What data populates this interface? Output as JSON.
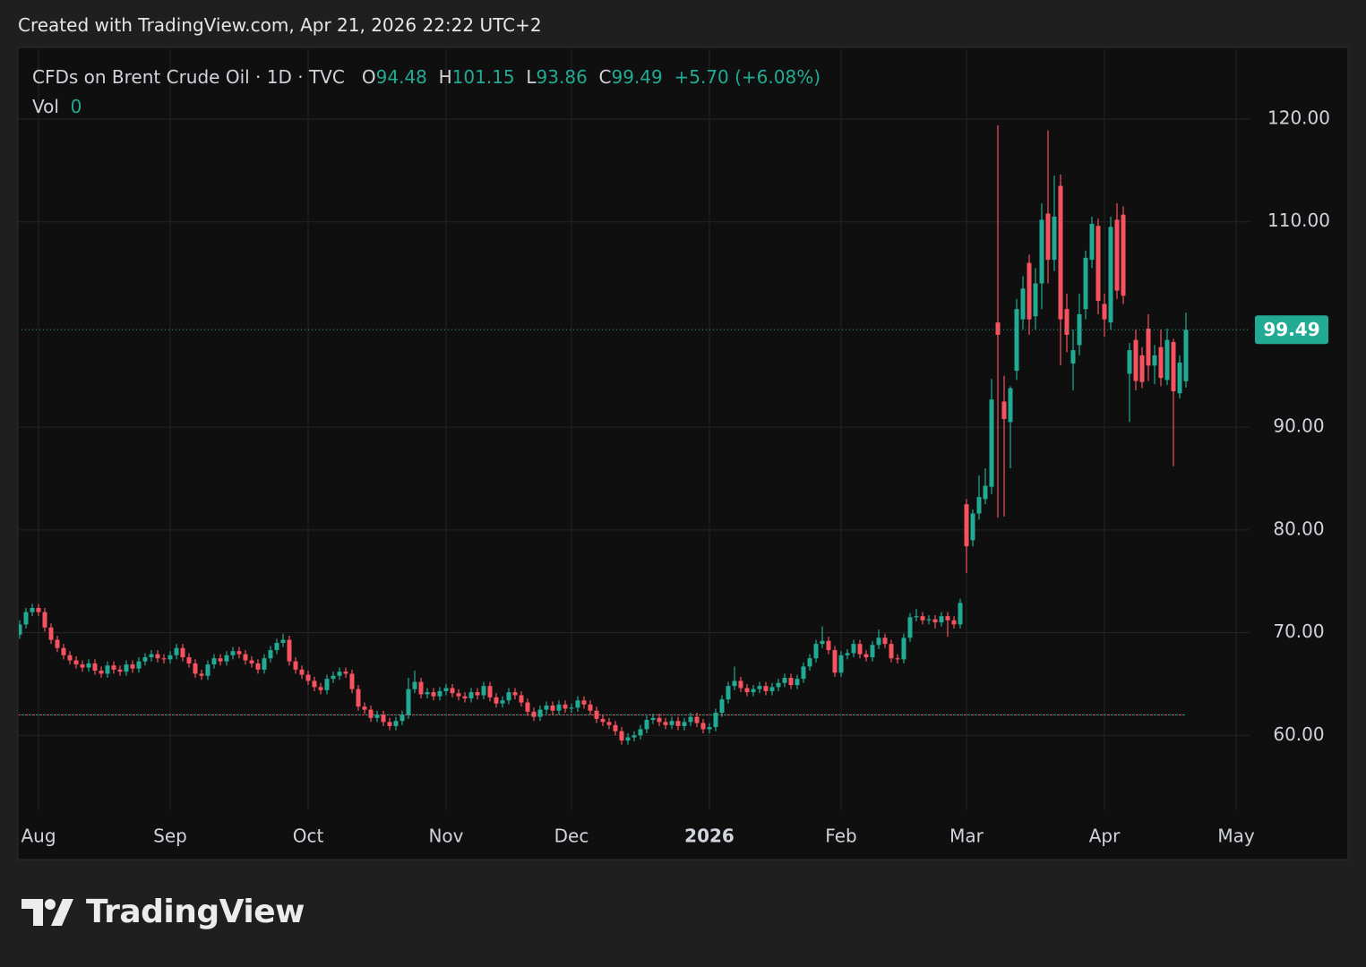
{
  "header": {
    "created": "Created with TradingView.com, Apr 21, 2026 22:22 UTC+2"
  },
  "logo": {
    "text": "TradingView"
  },
  "chart_data": {
    "type": "candlestick",
    "title": "CFDs on Brent Crude Oil · 1D · TVC",
    "ohlc_labels": {
      "open": "O",
      "high": "H",
      "low": "L",
      "close": "C"
    },
    "change": "+5.70 (+6.08%)",
    "volume_label": "Vol",
    "volume": 0,
    "up_color": "#22ab94",
    "down_color": "#f7525f",
    "ylim": [
      52.7,
      126.8
    ],
    "yticks": [
      {
        "value": 60,
        "label": "60.00"
      },
      {
        "value": 70,
        "label": "70.00"
      },
      {
        "value": 80,
        "label": "80.00"
      },
      {
        "value": 90,
        "label": "90.00"
      },
      {
        "value": 110,
        "label": "110.00"
      },
      {
        "value": 120,
        "label": "120.00"
      }
    ],
    "grid": true,
    "reference_line": 62.0,
    "categories": [
      null,
      null,
      null,
      "Aug",
      null,
      null,
      null,
      null,
      null,
      null,
      null,
      null,
      null,
      null,
      null,
      null,
      null,
      null,
      null,
      null,
      null,
      null,
      null,
      null,
      "Sep",
      null,
      null,
      null,
      null,
      null,
      null,
      null,
      null,
      null,
      null,
      null,
      null,
      null,
      null,
      null,
      null,
      null,
      null,
      null,
      null,
      null,
      "Oct",
      null,
      null,
      null,
      null,
      null,
      null,
      null,
      null,
      null,
      null,
      null,
      null,
      null,
      null,
      null,
      null,
      null,
      null,
      null,
      null,
      null,
      "Nov",
      null,
      null,
      null,
      null,
      null,
      null,
      null,
      null,
      null,
      null,
      null,
      null,
      null,
      null,
      null,
      null,
      null,
      null,
      null,
      "Dec",
      null,
      null,
      null,
      null,
      null,
      null,
      null,
      null,
      null,
      null,
      null,
      null,
      null,
      null,
      null,
      null,
      null,
      null,
      null,
      null,
      null,
      "2026",
      null,
      null,
      null,
      null,
      null,
      null,
      null,
      null,
      null,
      null,
      null,
      null,
      null,
      null,
      null,
      null,
      null,
      null,
      null,
      null,
      "Feb",
      null,
      null,
      null,
      null,
      null,
      null,
      null,
      null,
      null,
      null,
      null,
      null,
      null,
      null,
      null,
      null,
      null,
      null,
      null,
      "Mar",
      null,
      null,
      null,
      null,
      null,
      null,
      null,
      null,
      null,
      null,
      null,
      null,
      null,
      null,
      null,
      null,
      null,
      null,
      null,
      null,
      null,
      "Apr",
      null,
      null,
      null,
      null,
      null,
      null,
      null,
      null,
      null,
      null,
      null,
      null,
      null,
      null,
      null,
      null,
      null,
      null,
      null,
      null,
      "May"
    ],
    "open": [
      69.8,
      70.8,
      72.0,
      72.4,
      72.0,
      70.5,
      69.3,
      68.5,
      67.8,
      67.3,
      66.9,
      66.6,
      67.0,
      66.3,
      66.0,
      66.8,
      66.4,
      66.2,
      66.9,
      66.5,
      67.2,
      67.6,
      67.9,
      67.5,
      67.4,
      67.8,
      68.5,
      67.6,
      67.0,
      66.0,
      65.8,
      66.9,
      67.5,
      67.2,
      67.8,
      68.2,
      67.9,
      67.3,
      67.0,
      66.4,
      67.5,
      68.3,
      69.0,
      69.3,
      67.2,
      66.4,
      65.9,
      65.3,
      64.7,
      64.4,
      65.5,
      65.8,
      66.2,
      66.0,
      64.5,
      62.8,
      62.5,
      61.7,
      62.0,
      61.3,
      60.9,
      61.4,
      62.0,
      64.5,
      65.2,
      64.0,
      64.2,
      63.8,
      64.3,
      64.6,
      64.1,
      63.8,
      63.6,
      64.2,
      63.9,
      64.8,
      63.7,
      63.1,
      63.4,
      64.2,
      63.9,
      63.2,
      62.3,
      61.8,
      62.5,
      62.9,
      62.4,
      63.0,
      62.6,
      62.7,
      63.4,
      63.0,
      62.4,
      61.6,
      61.3,
      61.0,
      60.4,
      59.5,
      59.8,
      60.0,
      60.6,
      61.5,
      61.7,
      61.3,
      61.0,
      61.4,
      60.9,
      61.3,
      61.8,
      61.2,
      60.6,
      60.8,
      62.2,
      63.5,
      64.8,
      65.3,
      64.6,
      64.2,
      64.5,
      64.8,
      64.3,
      64.7,
      65.1,
      65.6,
      64.9,
      65.5,
      66.7,
      67.5,
      68.9,
      69.2,
      68.3,
      66.1,
      67.8,
      68.0,
      68.9,
      67.9,
      67.6,
      68.8,
      69.5,
      68.9,
      67.5,
      67.4,
      69.5,
      71.5,
      71.6,
      71.2,
      71.3,
      71.0,
      71.6,
      71.2,
      70.8,
      82.5,
      79.0,
      81.6,
      83.0,
      84.2,
      100.2,
      92.5,
      90.5,
      95.5,
      100.5,
      106.0,
      100.8,
      104.0,
      110.8,
      106.3,
      113.5,
      101.5,
      96.2,
      98.0,
      101.5,
      106.3,
      109.6,
      102.0,
      100.2,
      110.2,
      110.7,
      95.2,
      98.5,
      97.0,
      99.6,
      96.0,
      97.8,
      94.6,
      98.3,
      93.3,
      94.48,
      null,
      null,
      null,
      null,
      null,
      null,
      null,
      null
    ],
    "high": [
      71.2,
      72.4,
      72.8,
      72.8,
      72.4,
      70.9,
      69.7,
      68.9,
      68.2,
      67.7,
      67.3,
      67.4,
      67.4,
      66.7,
      67.2,
      67.2,
      66.8,
      67.3,
      67.3,
      67.6,
      68.0,
      68.3,
      68.3,
      67.9,
      68.2,
      68.9,
      68.9,
      68.0,
      67.4,
      66.4,
      67.3,
      67.9,
      67.9,
      68.2,
      68.6,
      68.6,
      68.3,
      67.7,
      67.4,
      67.9,
      68.7,
      69.4,
      69.9,
      69.7,
      67.6,
      66.8,
      66.3,
      65.7,
      65.1,
      65.9,
      66.2,
      66.6,
      66.6,
      66.4,
      64.9,
      63.2,
      62.9,
      62.4,
      62.4,
      61.7,
      61.8,
      62.4,
      65.6,
      66.3,
      65.6,
      64.6,
      64.6,
      64.7,
      65.0,
      65.0,
      64.5,
      64.2,
      64.6,
      64.6,
      65.2,
      65.2,
      64.1,
      63.8,
      64.6,
      64.6,
      64.3,
      63.6,
      62.7,
      62.9,
      63.3,
      63.3,
      63.4,
      63.4,
      63.1,
      63.8,
      63.8,
      63.4,
      62.8,
      62.0,
      61.7,
      61.4,
      60.8,
      60.2,
      60.4,
      61.0,
      61.9,
      62.1,
      62.1,
      61.7,
      61.8,
      61.8,
      61.7,
      62.2,
      62.2,
      61.6,
      61.2,
      62.6,
      63.9,
      65.2,
      66.7,
      65.7,
      65.0,
      64.9,
      65.2,
      65.2,
      65.1,
      65.5,
      66.0,
      66.0,
      65.9,
      67.1,
      67.9,
      69.3,
      70.6,
      69.6,
      68.7,
      68.2,
      68.4,
      69.3,
      69.3,
      68.3,
      69.2,
      70.3,
      69.9,
      69.3,
      67.9,
      69.9,
      71.9,
      72.3,
      72.0,
      71.7,
      71.7,
      72.0,
      72.0,
      71.6,
      73.3,
      83.0,
      82.0,
      85.3,
      86.0,
      94.7,
      119.4,
      95.0,
      94.0,
      102.5,
      104.7,
      106.8,
      105.5,
      111.8,
      118.9,
      114.5,
      114.6,
      103.0,
      99.5,
      103.0,
      107.2,
      110.5,
      110.3,
      103.0,
      110.5,
      111.8,
      111.5,
      98.2,
      99.5,
      97.8,
      101.0,
      98.0,
      99.5,
      99.6,
      98.6,
      97.0,
      101.15,
      null,
      null,
      null,
      null,
      null,
      null,
      null,
      null
    ],
    "low": [
      69.4,
      70.4,
      71.6,
      71.6,
      70.1,
      68.9,
      68.1,
      67.4,
      66.9,
      66.5,
      66.2,
      66.2,
      65.9,
      65.6,
      65.6,
      66.0,
      65.8,
      65.8,
      66.1,
      66.1,
      66.8,
      67.2,
      67.1,
      67.0,
      67.0,
      67.4,
      67.2,
      66.6,
      65.6,
      65.4,
      65.4,
      66.5,
      66.8,
      66.8,
      67.4,
      67.5,
      66.9,
      66.6,
      66.0,
      66.0,
      67.1,
      67.9,
      68.6,
      66.8,
      66.0,
      65.5,
      64.9,
      64.3,
      64.0,
      64.0,
      65.1,
      65.4,
      65.6,
      64.1,
      62.4,
      62.1,
      61.3,
      61.3,
      60.9,
      60.5,
      60.5,
      61.0,
      61.6,
      64.1,
      63.6,
      63.6,
      63.4,
      63.4,
      63.9,
      63.7,
      63.4,
      63.2,
      63.2,
      63.5,
      63.5,
      63.3,
      62.7,
      62.7,
      63.0,
      63.5,
      62.8,
      61.9,
      61.4,
      61.4,
      62.1,
      62.0,
      62.0,
      62.2,
      62.2,
      62.3,
      62.6,
      62.0,
      61.2,
      60.9,
      60.6,
      60.0,
      59.1,
      59.1,
      59.4,
      59.6,
      60.2,
      61.1,
      60.9,
      60.6,
      60.6,
      60.5,
      60.5,
      60.9,
      60.8,
      60.2,
      60.2,
      60.4,
      61.8,
      63.1,
      64.4,
      64.2,
      63.8,
      63.8,
      64.1,
      63.9,
      63.9,
      64.3,
      64.7,
      64.5,
      64.5,
      65.1,
      66.3,
      67.1,
      68.5,
      67.9,
      65.7,
      65.7,
      67.4,
      67.6,
      67.5,
      67.2,
      67.2,
      68.4,
      68.5,
      67.1,
      67.0,
      67.0,
      69.1,
      71.1,
      70.8,
      70.8,
      70.4,
      70.6,
      69.6,
      70.4,
      70.4,
      75.8,
      78.4,
      81.0,
      82.5,
      83.5,
      81.2,
      81.3,
      86.0,
      94.6,
      99.5,
      99.0,
      99.5,
      101.5,
      104.0,
      105.2,
      96.0,
      97.3,
      93.6,
      97.0,
      100.5,
      105.5,
      101.0,
      98.8,
      99.5,
      102.5,
      102.0,
      90.5,
      93.6,
      93.8,
      94.5,
      94.2,
      94.0,
      94.1,
      86.2,
      92.8,
      93.86,
      null,
      null,
      null,
      null,
      null,
      null,
      null,
      null
    ],
    "close": [
      70.8,
      72.0,
      72.4,
      72.0,
      70.5,
      69.3,
      68.5,
      67.8,
      67.3,
      66.9,
      66.6,
      67.0,
      66.3,
      66.0,
      66.8,
      66.4,
      66.2,
      66.9,
      66.5,
      67.2,
      67.6,
      67.9,
      67.5,
      67.4,
      67.8,
      68.5,
      67.6,
      67.0,
      66.0,
      65.8,
      66.9,
      67.5,
      67.2,
      67.8,
      68.2,
      67.9,
      67.3,
      67.0,
      66.4,
      67.5,
      68.3,
      69.0,
      69.3,
      67.2,
      66.4,
      65.9,
      65.3,
      64.7,
      64.4,
      65.5,
      65.8,
      66.2,
      66.0,
      64.5,
      62.8,
      62.5,
      61.7,
      62.0,
      61.3,
      60.9,
      61.4,
      62.0,
      64.5,
      65.2,
      64.0,
      64.2,
      63.8,
      64.3,
      64.6,
      64.1,
      63.8,
      63.6,
      64.2,
      63.9,
      64.8,
      63.7,
      63.1,
      63.4,
      64.2,
      63.9,
      63.2,
      62.3,
      61.8,
      62.5,
      62.9,
      62.4,
      63.0,
      62.6,
      62.7,
      63.4,
      63.0,
      62.4,
      61.6,
      61.3,
      61.0,
      60.4,
      59.5,
      59.8,
      60.0,
      60.6,
      61.5,
      61.7,
      61.3,
      61.0,
      61.4,
      60.9,
      61.3,
      61.8,
      61.2,
      60.6,
      60.8,
      62.2,
      63.5,
      64.8,
      65.3,
      64.6,
      64.2,
      64.5,
      64.8,
      64.3,
      64.7,
      65.1,
      65.6,
      64.9,
      65.5,
      66.7,
      67.5,
      68.9,
      69.2,
      68.3,
      66.1,
      67.8,
      68.0,
      68.9,
      67.9,
      67.6,
      68.8,
      69.5,
      68.9,
      67.5,
      67.4,
      69.5,
      71.5,
      71.6,
      71.2,
      71.3,
      71.0,
      71.6,
      71.2,
      70.8,
      72.9,
      78.4,
      81.6,
      83.2,
      84.3,
      92.7,
      99.0,
      90.8,
      93.8,
      101.5,
      103.5,
      100.5,
      104.0,
      110.2,
      106.3,
      110.5,
      100.5,
      99.0,
      97.5,
      101.0,
      106.5,
      109.8,
      102.3,
      100.5,
      109.5,
      103.3,
      102.8,
      97.5,
      94.5,
      94.4,
      96.0,
      97.0,
      94.8,
      98.5,
      93.5,
      96.3,
      99.49,
      null,
      null,
      null,
      null,
      null,
      null,
      null,
      null
    ]
  }
}
